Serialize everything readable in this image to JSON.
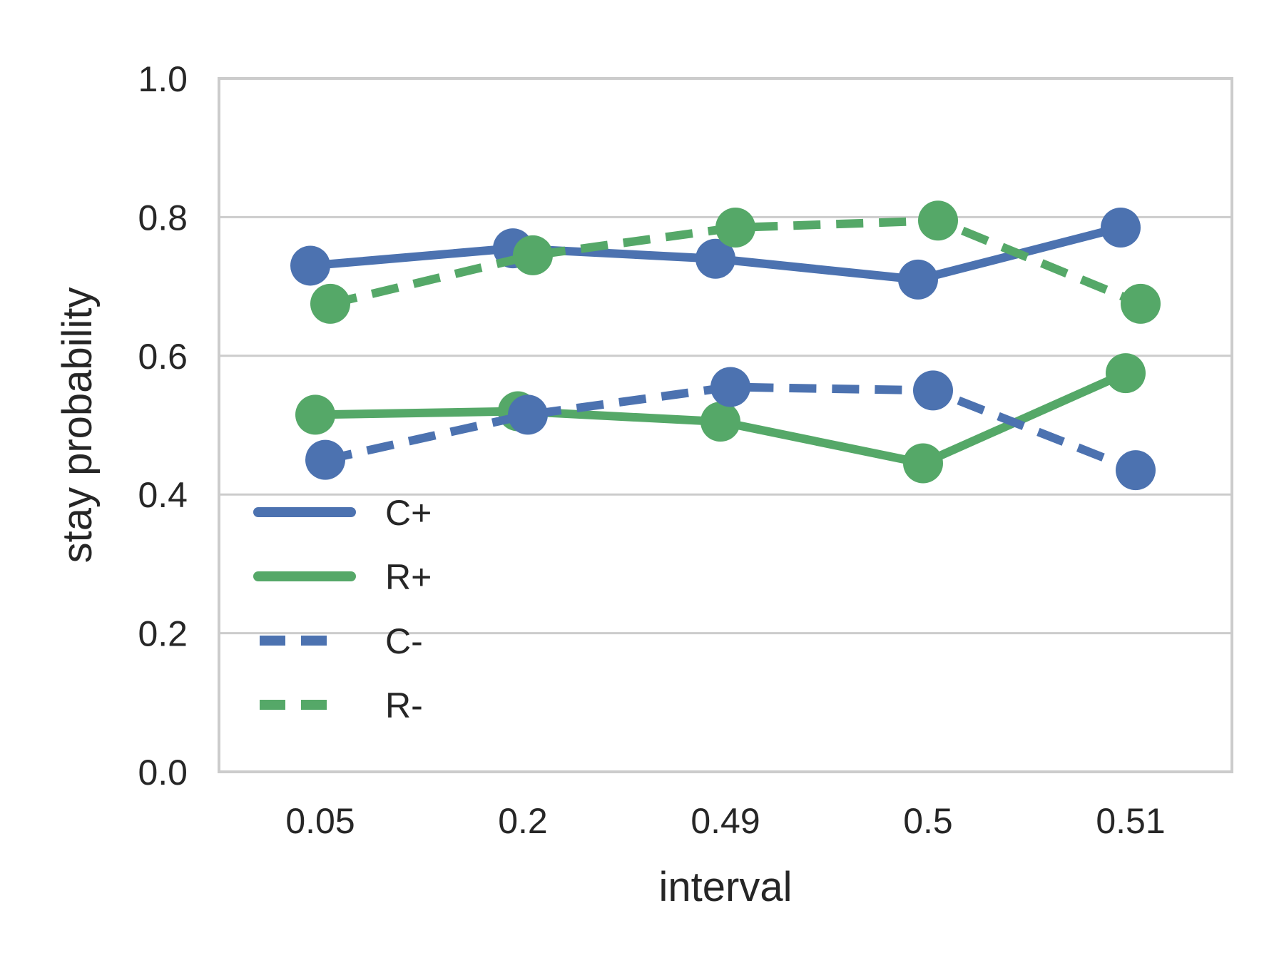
{
  "chart_data": {
    "type": "line",
    "title": "",
    "xlabel": "interval",
    "ylabel": "stay probability",
    "categories": [
      "0.05",
      "0.2",
      "0.49",
      "0.5",
      "0.51"
    ],
    "ylim": [
      0,
      1
    ],
    "yticks": [
      "0.0",
      "0.2",
      "0.4",
      "0.6",
      "0.8",
      "1.0"
    ],
    "grid": "horizontal",
    "legend_position": "lower-left",
    "series": [
      {
        "name": "C+",
        "color": "#4c72b0",
        "style": "solid",
        "values": [
          0.73,
          0.755,
          0.74,
          0.71,
          0.785
        ]
      },
      {
        "name": "R+",
        "color": "#55a868",
        "style": "solid",
        "values": [
          0.515,
          0.52,
          0.505,
          0.445,
          0.575
        ]
      },
      {
        "name": "C-",
        "color": "#4c72b0",
        "style": "dashed",
        "values": [
          0.45,
          0.515,
          0.555,
          0.55,
          0.435
        ]
      },
      {
        "name": "R-",
        "color": "#55a868",
        "style": "dashed",
        "values": [
          0.675,
          0.745,
          0.785,
          0.795,
          0.675
        ]
      }
    ]
  }
}
